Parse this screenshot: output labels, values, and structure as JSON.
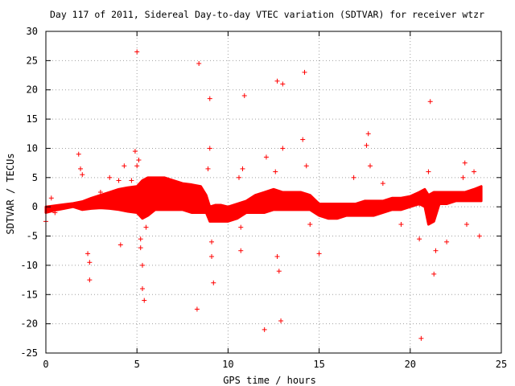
{
  "chart_data": {
    "type": "scatter",
    "title": "Day 117 of 2011, Sidereal Day-to-day VTEC variation (SDTVAR) for receiver wtzr",
    "xlabel": "GPS time / hours",
    "ylabel": "SDTVAR / TECUs",
    "xlim": [
      0,
      25
    ],
    "ylim": [
      -25,
      30
    ],
    "x_ticks": [
      "0",
      "5",
      "10",
      "15",
      "20",
      "25"
    ],
    "y_ticks": [
      "-25",
      "-20",
      "-15",
      "-10",
      "-5",
      "0",
      "5",
      "10",
      "15",
      "20",
      "25",
      "30"
    ],
    "x_tick_values": [
      0,
      5,
      10,
      15,
      20,
      25
    ],
    "y_tick_values": [
      -25,
      -20,
      -15,
      -10,
      -5,
      0,
      5,
      10,
      15,
      20,
      25,
      30
    ],
    "grid": true,
    "marker": "plus",
    "color": "#ff0000",
    "band": {
      "description": "dense band of variation",
      "x": [
        0.0,
        0.5,
        1.0,
        1.5,
        2.0,
        2.5,
        3.0,
        3.5,
        4.0,
        4.5,
        5.0,
        5.3,
        5.6,
        6.0,
        6.5,
        7.0,
        7.5,
        8.0,
        8.5,
        8.8,
        9.0,
        9.3,
        9.6,
        10.0,
        10.5,
        11.0,
        11.5,
        12.0,
        12.5,
        13.0,
        13.5,
        14.0,
        14.5,
        15.0,
        15.5,
        16.0,
        16.5,
        17.0,
        17.5,
        18.0,
        18.5,
        19.0,
        19.5,
        20.0,
        20.5,
        20.8,
        21.0,
        21.3,
        21.6,
        22.0,
        22.5,
        23.0,
        23.5,
        23.9
      ],
      "upper": [
        0.0,
        0.2,
        0.4,
        0.6,
        0.9,
        1.5,
        2.0,
        2.5,
        3.0,
        3.3,
        3.5,
        4.5,
        5.0,
        5.0,
        5.0,
        4.5,
        4.0,
        3.8,
        3.5,
        2.0,
        0.0,
        0.3,
        0.3,
        0.0,
        0.5,
        1.0,
        2.0,
        2.5,
        3.0,
        2.5,
        2.5,
        2.5,
        2.0,
        0.5,
        0.5,
        0.5,
        0.5,
        0.5,
        1.0,
        1.0,
        1.0,
        1.5,
        1.5,
        1.8,
        2.5,
        3.0,
        2.0,
        2.5,
        2.5,
        2.5,
        2.5,
        2.5,
        3.0,
        3.5
      ],
      "lower": [
        -1.0,
        -0.6,
        -0.3,
        0.0,
        -0.5,
        -0.3,
        -0.2,
        -0.3,
        -0.5,
        -0.8,
        -1.0,
        -2.0,
        -1.5,
        -0.5,
        -0.5,
        -0.5,
        -0.5,
        -1.0,
        -1.0,
        -1.0,
        -2.5,
        -2.5,
        -2.5,
        -2.5,
        -2.0,
        -1.0,
        -1.0,
        -1.0,
        -0.5,
        -0.5,
        -0.5,
        -0.5,
        -0.5,
        -1.5,
        -2.0,
        -2.0,
        -1.5,
        -1.5,
        -1.5,
        -1.5,
        -1.0,
        -0.5,
        -0.5,
        0.0,
        0.5,
        0.0,
        -3.0,
        -2.5,
        0.5,
        0.5,
        1.0,
        1.0,
        1.0,
        1.0
      ]
    },
    "outliers": {
      "x": [
        0.0,
        0.3,
        0.5,
        1.8,
        1.9,
        2.0,
        2.3,
        2.4,
        2.4,
        3.0,
        3.5,
        4.0,
        4.1,
        4.3,
        4.7,
        4.9,
        5.0,
        5.0,
        5.1,
        5.2,
        5.2,
        5.3,
        5.3,
        5.4,
        5.5,
        8.3,
        8.4,
        8.9,
        9.0,
        9.0,
        9.1,
        9.1,
        9.2,
        10.6,
        10.7,
        10.7,
        10.8,
        10.9,
        12.0,
        12.1,
        12.6,
        12.7,
        12.7,
        12.8,
        12.9,
        13.0,
        13.0,
        14.1,
        14.2,
        14.3,
        14.5,
        15.0,
        16.9,
        17.6,
        17.7,
        17.8,
        18.5,
        19.5,
        20.5,
        20.5,
        20.6,
        21.0,
        21.1,
        21.3,
        21.4,
        22.0,
        22.9,
        23.0,
        23.1,
        23.5,
        23.8
      ],
      "y": [
        -2.5,
        1.5,
        -1.0,
        9.0,
        6.5,
        5.5,
        -8.0,
        -9.5,
        -12.5,
        2.5,
        5.0,
        4.5,
        -6.5,
        7.0,
        4.5,
        9.5,
        7.0,
        26.5,
        8.0,
        -5.5,
        -7.0,
        -10.0,
        -14.0,
        -16.0,
        -3.5,
        -17.5,
        24.5,
        6.5,
        18.5,
        10.0,
        -6.0,
        -8.5,
        -13.0,
        5.0,
        -3.5,
        -7.5,
        6.5,
        19.0,
        -21.0,
        8.5,
        6.0,
        21.5,
        -8.5,
        -11.0,
        -19.5,
        21.0,
        10.0,
        11.5,
        23.0,
        7.0,
        -3.0,
        -8.0,
        5.0,
        10.5,
        12.5,
        7.0,
        4.0,
        -3.0,
        0.5,
        -5.5,
        -22.5,
        6.0,
        18.0,
        -11.5,
        -7.5,
        -6.0,
        5.0,
        7.5,
        -3.0,
        6.0,
        -5.0
      ]
    }
  }
}
